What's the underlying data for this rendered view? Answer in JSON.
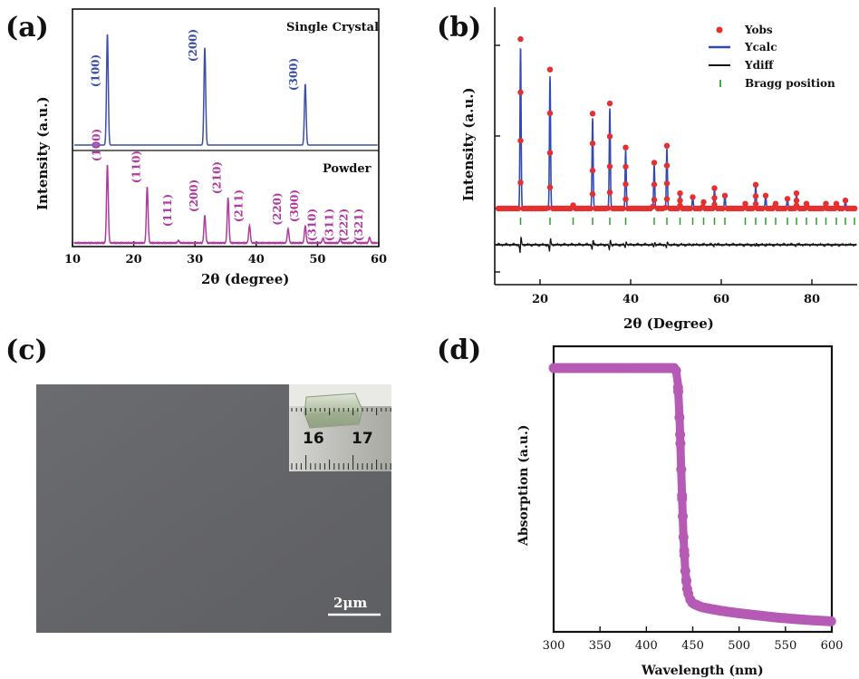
{
  "panels": {
    "a": {
      "letter": "(a)",
      "xlabel": "2θ  (degree)",
      "ylabel": "Intensity (a.u.)",
      "top_label": "Single Crystal",
      "bottom_label": "Powder",
      "colors": {
        "single": "#3a4fa8",
        "powder": "#b03aa0"
      }
    },
    "b": {
      "letter": "(b)",
      "xlabel": "2θ (Degree)",
      "ylabel": "Intensity (a.u.)",
      "legend": [
        "Yobs",
        "Ycalc",
        "Ydiff",
        "Bragg position"
      ],
      "colors": {
        "obs": "#e53030",
        "calc": "#3049b8",
        "diff": "#111111",
        "bragg": "#2aa02a"
      }
    },
    "c": {
      "letter": "(c)",
      "scale_bar": "2μm",
      "ruler_numbers": [
        "16",
        "17"
      ]
    },
    "d": {
      "letter": "(d)",
      "xlabel": "Wavelength (nm)",
      "ylabel": "Absorption (a.u.)",
      "color": "#b55ab5"
    }
  },
  "chart_data": [
    {
      "type": "line",
      "panel": "a",
      "x_ticks": [
        10,
        20,
        30,
        40,
        50,
        60
      ],
      "xlim": [
        10,
        60
      ],
      "series": [
        {
          "name": "Single Crystal",
          "peaks": [
            {
              "x": 15.7,
              "h": 1.0,
              "label": "(100)"
            },
            {
              "x": 31.6,
              "h": 0.88,
              "label": "(200)"
            },
            {
              "x": 48.0,
              "h": 0.55,
              "label": "(300)"
            }
          ]
        },
        {
          "name": "Powder",
          "peaks": [
            {
              "x": 15.7,
              "h": 1.0,
              "label": "(100)"
            },
            {
              "x": 22.2,
              "h": 0.72,
              "label": "(110)"
            },
            {
              "x": 27.3,
              "h": 0.03,
              "label": "(111)"
            },
            {
              "x": 31.6,
              "h": 0.35,
              "label": "(200)"
            },
            {
              "x": 35.4,
              "h": 0.58,
              "label": "(210)"
            },
            {
              "x": 38.9,
              "h": 0.22,
              "label": "(211)"
            },
            {
              "x": 45.2,
              "h": 0.18,
              "label": "(220)"
            },
            {
              "x": 48.0,
              "h": 0.22,
              "label": "(300)"
            },
            {
              "x": 50.9,
              "h": 0.06,
              "label": "(310)"
            },
            {
              "x": 53.7,
              "h": 0.05,
              "label": "(311)"
            },
            {
              "x": 56.1,
              "h": 0.03,
              "label": "(222)"
            },
            {
              "x": 58.5,
              "h": 0.07,
              "label": "(321)"
            }
          ]
        }
      ]
    },
    {
      "type": "line",
      "panel": "b",
      "x_ticks": [
        20,
        40,
        60,
        80
      ],
      "xlim": [
        10,
        90
      ],
      "peaks": [
        {
          "x": 15.7,
          "h": 1.0
        },
        {
          "x": 22.2,
          "h": 0.82
        },
        {
          "x": 27.3,
          "h": 0.02
        },
        {
          "x": 31.6,
          "h": 0.56
        },
        {
          "x": 35.4,
          "h": 0.62
        },
        {
          "x": 38.9,
          "h": 0.36
        },
        {
          "x": 45.2,
          "h": 0.27
        },
        {
          "x": 48.0,
          "h": 0.37
        },
        {
          "x": 50.9,
          "h": 0.09
        },
        {
          "x": 53.7,
          "h": 0.07
        },
        {
          "x": 56.1,
          "h": 0.04
        },
        {
          "x": 58.5,
          "h": 0.12
        },
        {
          "x": 60.8,
          "h": 0.08
        },
        {
          "x": 65.3,
          "h": 0.03
        },
        {
          "x": 67.6,
          "h": 0.14
        },
        {
          "x": 69.8,
          "h": 0.08
        },
        {
          "x": 72.0,
          "h": 0.03
        },
        {
          "x": 74.6,
          "h": 0.06
        },
        {
          "x": 76.6,
          "h": 0.09
        },
        {
          "x": 78.8,
          "h": 0.03
        },
        {
          "x": 83.1,
          "h": 0.03
        },
        {
          "x": 85.4,
          "h": 0.03
        },
        {
          "x": 87.4,
          "h": 0.05
        }
      ],
      "bragg": [
        15.7,
        22.2,
        27.3,
        31.6,
        35.4,
        38.9,
        45.2,
        48.0,
        50.9,
        53.7,
        56.1,
        58.5,
        60.8,
        65.3,
        67.6,
        69.8,
        72.0,
        74.6,
        76.6,
        78.8,
        81.0,
        83.1,
        85.4,
        87.4,
        89.4
      ]
    },
    {
      "type": "line",
      "panel": "d",
      "x_ticks": [
        300,
        350,
        400,
        450,
        500,
        550,
        600
      ],
      "xlim": [
        300,
        600
      ],
      "ylim": [
        0,
        1
      ],
      "series": [
        {
          "x": [
            300,
            320,
            340,
            360,
            380,
            400,
            420,
            430,
            432,
            434,
            436,
            438,
            440,
            442,
            444,
            446,
            448,
            450,
            460,
            480,
            500,
            520,
            540,
            560,
            580,
            600
          ],
          "y": [
            0.99,
            0.99,
            0.99,
            0.99,
            0.99,
            0.99,
            0.99,
            0.99,
            0.98,
            0.93,
            0.78,
            0.55,
            0.34,
            0.21,
            0.14,
            0.11,
            0.095,
            0.085,
            0.07,
            0.057,
            0.047,
            0.039,
            0.031,
            0.025,
            0.02,
            0.016
          ]
        }
      ]
    }
  ]
}
